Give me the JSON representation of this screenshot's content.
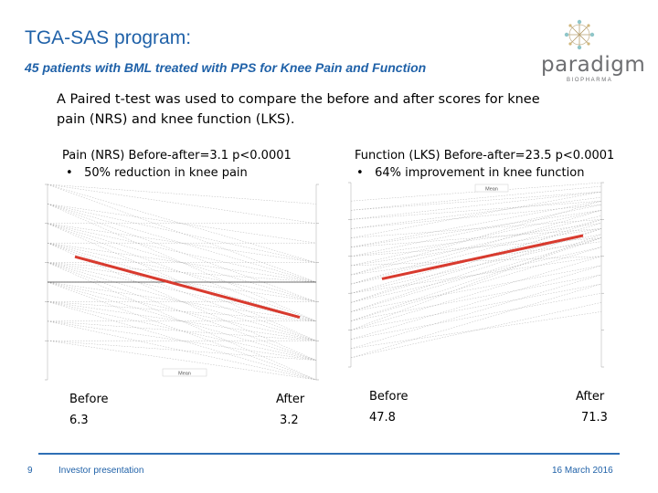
{
  "header": {
    "title": "TGA-SAS program:",
    "subtitle": "45 patients with BML treated with PPS for Knee Pain and Function"
  },
  "logo": {
    "word": "paradigm",
    "sub": "BIOPHARMA",
    "icon": "starburst-network-icon"
  },
  "intro": "A Paired t-test was used to compare the before and after scores for knee pain (NRS) and knee function (LKS).",
  "left_panel": {
    "stat": "Pain (NRS)  Before-after=3.1 p<0.0001",
    "bullet": "50% reduction in knee pain",
    "before_label": "Before",
    "after_label": "After",
    "before_value": "6.3",
    "after_value": "3.2",
    "legend": "Mean"
  },
  "right_panel": {
    "stat": "Function (LKS) Before-after=23.5 p<0.0001",
    "bullet": "64% improvement in knee function",
    "before_label": "Before",
    "after_label": "After",
    "before_value": "47.8",
    "after_value": "71.3",
    "legend": "Mean"
  },
  "colors": {
    "accent": "#1f61a8",
    "mean_line": "#d83a2e",
    "patient_line": "#9a9a9a"
  },
  "footer": {
    "page_number": "9",
    "label": "Investor presentation",
    "date": "16 March 2016"
  },
  "chart_data": [
    {
      "type": "line",
      "title": "Pain (NRS)",
      "x": [
        "Before",
        "After"
      ],
      "ylim": [
        0,
        10
      ],
      "series": [
        {
          "name": "Mean",
          "values": [
            6.3,
            3.2
          ],
          "color": "#d83a2e"
        }
      ],
      "patients": [
        [
          10,
          8
        ],
        [
          10,
          9
        ],
        [
          9,
          7
        ],
        [
          9,
          5
        ],
        [
          9,
          3
        ],
        [
          8,
          8
        ],
        [
          8,
          6
        ],
        [
          8,
          4
        ],
        [
          8,
          2
        ],
        [
          7,
          7
        ],
        [
          7,
          5
        ],
        [
          7,
          3
        ],
        [
          7,
          1
        ],
        [
          6,
          6
        ],
        [
          6,
          4
        ],
        [
          6,
          2
        ],
        [
          6,
          0
        ],
        [
          5,
          5
        ],
        [
          5,
          3
        ],
        [
          5,
          1
        ],
        [
          4,
          4
        ],
        [
          4,
          2
        ],
        [
          4,
          0
        ],
        [
          3,
          3
        ],
        [
          3,
          1
        ],
        [
          2,
          2
        ],
        [
          2,
          0
        ],
        [
          10,
          5
        ],
        [
          9,
          6
        ],
        [
          8,
          3
        ],
        [
          7,
          2
        ],
        [
          6,
          3
        ],
        [
          5,
          2
        ],
        [
          4,
          1
        ],
        [
          3,
          0
        ],
        [
          2,
          1
        ],
        [
          6,
          5
        ],
        [
          5,
          0
        ],
        [
          7,
          4
        ],
        [
          8,
          5
        ],
        [
          9,
          4
        ],
        [
          10,
          6
        ],
        [
          4,
          3
        ],
        [
          3,
          2
        ],
        [
          6,
          1
        ]
      ]
    },
    {
      "type": "line",
      "title": "Function (LKS)",
      "x": [
        "Before",
        "After"
      ],
      "ylim": [
        0,
        100
      ],
      "series": [
        {
          "name": "Mean",
          "values": [
            47.8,
            71.3
          ],
          "color": "#d83a2e"
        }
      ],
      "patients": [
        [
          90,
          100
        ],
        [
          85,
          98
        ],
        [
          80,
          95
        ],
        [
          75,
          92
        ],
        [
          70,
          95
        ],
        [
          65,
          90
        ],
        [
          60,
          88
        ],
        [
          55,
          85
        ],
        [
          50,
          82
        ],
        [
          45,
          80
        ],
        [
          40,
          78
        ],
        [
          35,
          75
        ],
        [
          30,
          70
        ],
        [
          25,
          65
        ],
        [
          20,
          60
        ],
        [
          15,
          55
        ],
        [
          10,
          50
        ],
        [
          5,
          45
        ],
        [
          60,
          70
        ],
        [
          55,
          75
        ],
        [
          50,
          68
        ],
        [
          45,
          72
        ],
        [
          40,
          60
        ],
        [
          35,
          65
        ],
        [
          30,
          55
        ],
        [
          25,
          50
        ],
        [
          20,
          45
        ],
        [
          15,
          40
        ],
        [
          65,
          85
        ],
        [
          70,
          80
        ],
        [
          75,
          88
        ],
        [
          80,
          90
        ],
        [
          85,
          95
        ],
        [
          50,
          90
        ],
        [
          45,
          85
        ],
        [
          40,
          70
        ],
        [
          35,
          80
        ],
        [
          30,
          75
        ],
        [
          55,
          60
        ],
        [
          60,
          78
        ],
        [
          25,
          70
        ],
        [
          20,
          72
        ],
        [
          10,
          30
        ],
        [
          5,
          35
        ],
        [
          65,
          75
        ]
      ]
    }
  ]
}
